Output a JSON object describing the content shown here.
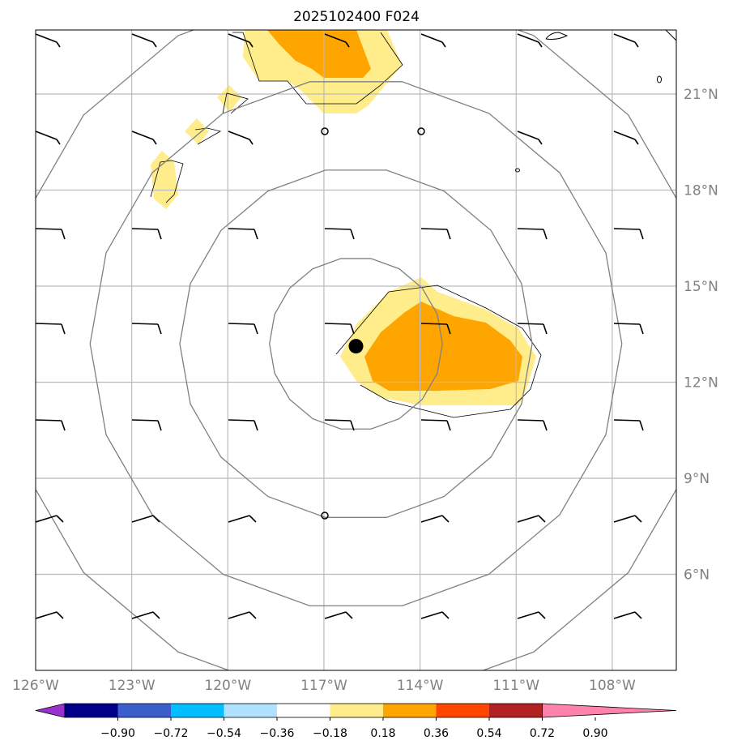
{
  "title": "2025102400 F024",
  "map": {
    "lon_range": [
      -126,
      -106
    ],
    "lat_range": [
      3,
      23
    ],
    "lon_ticks": [
      {
        "value": -126,
        "label": "126°W"
      },
      {
        "value": -123,
        "label": "123°W"
      },
      {
        "value": -120,
        "label": "120°W"
      },
      {
        "value": -117,
        "label": "117°W"
      },
      {
        "value": -114,
        "label": "114°W"
      },
      {
        "value": -111,
        "label": "111°W"
      },
      {
        "value": -108,
        "label": "108°W"
      }
    ],
    "lat_ticks": [
      {
        "value": 6,
        "label": "6°N"
      },
      {
        "value": 9,
        "label": "9°N"
      },
      {
        "value": 12,
        "label": "12°N"
      },
      {
        "value": 15,
        "label": "15°N"
      },
      {
        "value": 18,
        "label": "18°N"
      },
      {
        "value": 21,
        "label": "21°N"
      }
    ],
    "storm_center": {
      "lon": -116.0,
      "lat": 13.2
    },
    "range_rings_deg": [
      2.7,
      5.5,
      8.3,
      11.1
    ]
  },
  "colorbar": {
    "colors": [
      "#9932CC",
      "#00008B",
      "#3A5FCD",
      "#00BFFF",
      "#B0E2FF",
      "#FFFFFF",
      "#FFEC8B",
      "#FFA500",
      "#FF4500",
      "#B22222",
      "#FF82AB"
    ],
    "tick_labels": [
      "−0.90",
      "−0.72",
      "−0.54",
      "−0.36",
      "−0.18",
      "0.18",
      "0.36",
      "0.54",
      "0.72",
      "0.90"
    ]
  },
  "colors": {
    "light_fill": "#FFEC8B",
    "dark_fill": "#FFA500",
    "grid": "#bbbbbb",
    "rings": "#808080",
    "barbs": "#000000",
    "axis_labels": "#808080"
  }
}
